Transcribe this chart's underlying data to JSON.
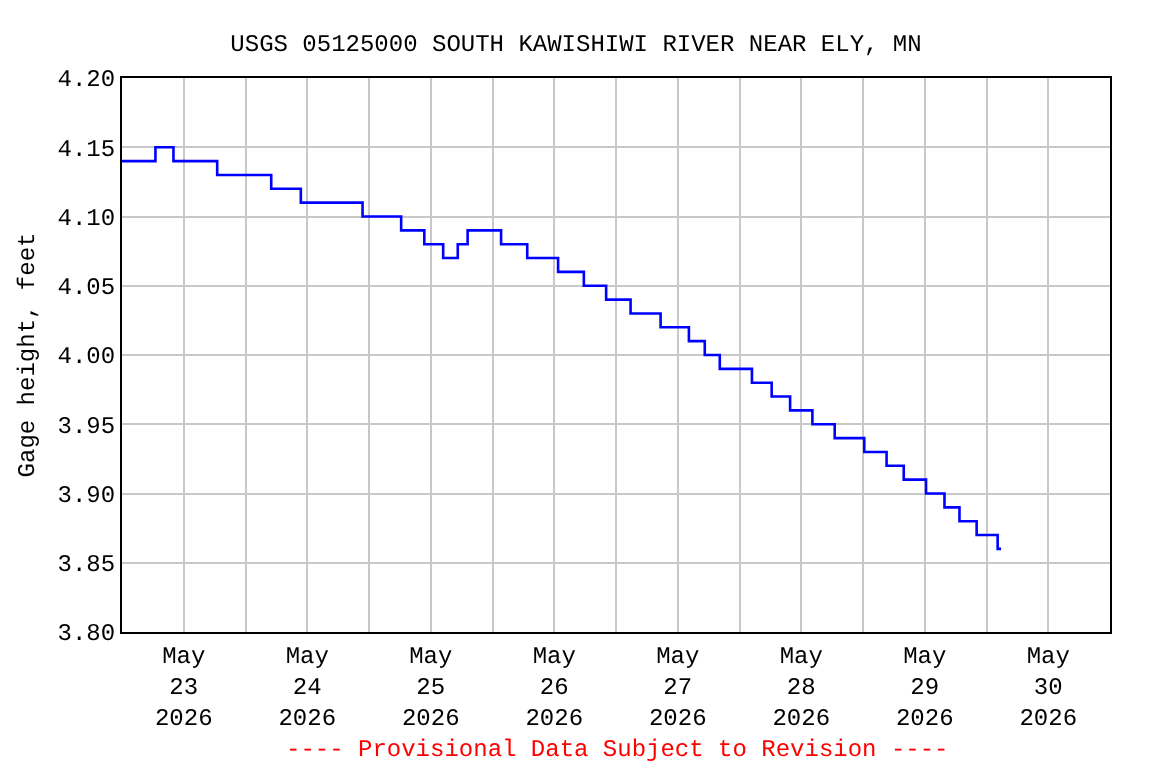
{
  "chart_data": {
    "type": "step",
    "title": "USGS 05125000 SOUTH KAWISHIWI RIVER NEAR ELY, MN",
    "ylabel": "Gage height, feet",
    "x": [
      "2026-05-23T00:00",
      "2026-05-23T06:30",
      "2026-05-23T10:00",
      "2026-05-23T18:30",
      "2026-05-24T05:00",
      "2026-05-24T10:45",
      "2026-05-24T22:45",
      "2026-05-25T06:15",
      "2026-05-25T10:45",
      "2026-05-25T14:25",
      "2026-05-25T17:15",
      "2026-05-25T19:10",
      "2026-05-26T01:40",
      "2026-05-26T06:45",
      "2026-05-26T12:45",
      "2026-05-26T17:45",
      "2026-05-26T22:05",
      "2026-05-27T02:50",
      "2026-05-27T08:40",
      "2026-05-27T14:10",
      "2026-05-27T17:15",
      "2026-05-27T20:10",
      "2026-05-28T02:25",
      "2026-05-28T06:15",
      "2026-05-28T09:50",
      "2026-05-28T14:10",
      "2026-05-28T18:30",
      "2026-05-29T00:15",
      "2026-05-29T04:35",
      "2026-05-29T07:55",
      "2026-05-29T12:15",
      "2026-05-29T15:50",
      "2026-05-29T18:45",
      "2026-05-29T22:05",
      "2026-05-30T02:10",
      "2026-05-30T02:50"
    ],
    "series": [
      {
        "color": "#0000ff",
        "values": [
          4.14,
          4.15,
          4.14,
          4.13,
          4.12,
          4.11,
          4.1,
          4.09,
          4.08,
          4.07,
          4.08,
          4.09,
          4.08,
          4.07,
          4.06,
          4.05,
          4.04,
          4.03,
          4.02,
          4.01,
          4.0,
          3.99,
          3.98,
          3.97,
          3.96,
          3.95,
          3.94,
          3.93,
          3.92,
          3.91,
          3.9,
          3.89,
          3.88,
          3.87,
          3.86,
          3.86
        ]
      }
    ],
    "xlim": [
      "2026-05-23T00:00",
      "2026-05-31T00:00"
    ],
    "xticks": [
      {
        "value": "2026-05-23T12:00",
        "label": "May\n23\n2026"
      },
      {
        "value": "2026-05-24T12:00",
        "label": "May\n24\n2026"
      },
      {
        "value": "2026-05-25T12:00",
        "label": "May\n25\n2026"
      },
      {
        "value": "2026-05-26T12:00",
        "label": "May\n26\n2026"
      },
      {
        "value": "2026-05-27T12:00",
        "label": "May\n27\n2026"
      },
      {
        "value": "2026-05-28T12:00",
        "label": "May\n28\n2026"
      },
      {
        "value": "2026-05-29T12:00",
        "label": "May\n29\n2026"
      },
      {
        "value": "2026-05-30T12:00",
        "label": "May\n30\n2026"
      },
      {
        "value": "2026-05-24T00:00",
        "label": null
      },
      {
        "value": "2026-05-25T00:00",
        "label": null
      },
      {
        "value": "2026-05-26T00:00",
        "label": null
      },
      {
        "value": "2026-05-27T00:00",
        "label": null
      },
      {
        "value": "2026-05-28T00:00",
        "label": null
      },
      {
        "value": "2026-05-29T00:00",
        "label": null
      },
      {
        "value": "2026-05-30T00:00",
        "label": null
      }
    ],
    "ylim": [
      3.8,
      4.2
    ],
    "yticks": [
      {
        "value": 3.8,
        "label": "3.80"
      },
      {
        "value": 3.85,
        "label": "3.85"
      },
      {
        "value": 3.9,
        "label": "3.90"
      },
      {
        "value": 3.95,
        "label": "3.95"
      },
      {
        "value": 4.0,
        "label": "4.00"
      },
      {
        "value": 4.05,
        "label": "4.05"
      },
      {
        "value": 4.1,
        "label": "4.10"
      },
      {
        "value": 4.15,
        "label": "4.15"
      },
      {
        "value": 4.2,
        "label": "4.20"
      }
    ],
    "grid": true,
    "line_style": "solid",
    "marker": "none",
    "annotations": [
      "---- Provisional Data Subject to Revision ----"
    ]
  }
}
